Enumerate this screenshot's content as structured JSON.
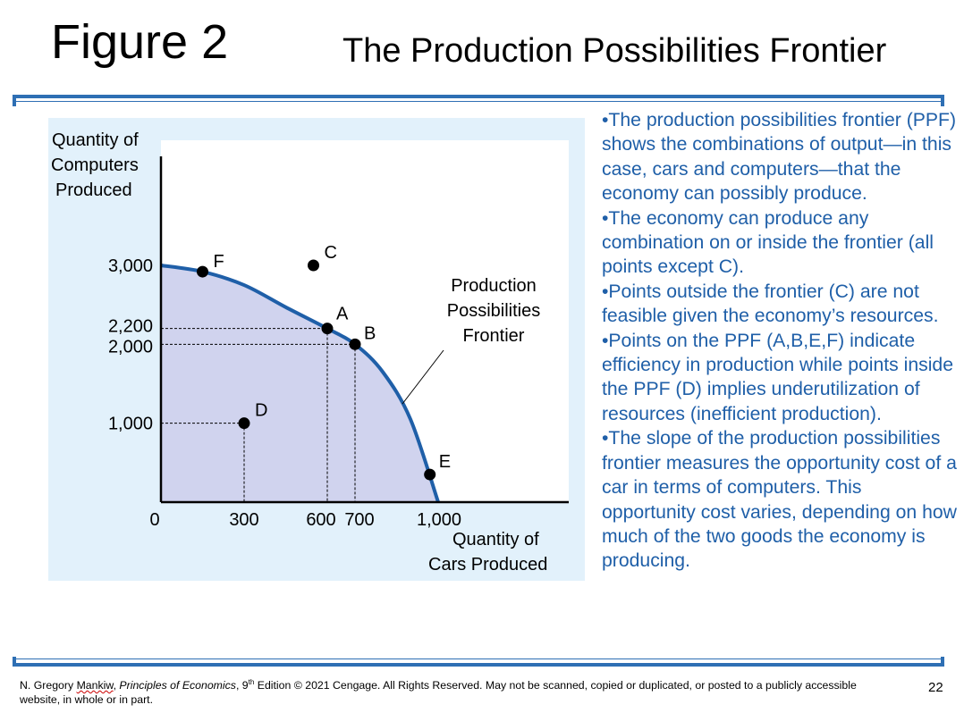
{
  "header": {
    "figure_label": "Figure 2",
    "title": "The Production Possibilities Frontier"
  },
  "colors": {
    "accent_blue": "#2e6fb4",
    "bullet_text": "#1f5fa8",
    "chart_background": "#e2f1fb",
    "feasible_region": "#d0d3ee",
    "frontier_line": "#1f5fa8"
  },
  "chart_data": {
    "type": "line",
    "xlabel": "Quantity of Cars Produced",
    "xlabel_lines": [
      "Quantity of",
      "Cars Produced"
    ],
    "ylabel": "Quantity of Computers Produced",
    "ylabel_lines": [
      "Quantity of",
      "Computers",
      "Produced"
    ],
    "xlim": [
      0,
      1000
    ],
    "ylim": [
      0,
      3000
    ],
    "origin_label": "0",
    "x_ticks": [
      {
        "value": 300,
        "label": "300"
      },
      {
        "value": 600,
        "label": "600"
      },
      {
        "value": 700,
        "label": "700"
      },
      {
        "value": 1000,
        "label": "1,000"
      }
    ],
    "y_ticks": [
      {
        "value": 1000,
        "label": "1,000"
      },
      {
        "value": 2000,
        "label": "2,000"
      },
      {
        "value": 2200,
        "label": "2,200"
      },
      {
        "value": 3000,
        "label": "3,000"
      }
    ],
    "frontier_label_lines": [
      "Production",
      "Possibilities",
      "Frontier"
    ],
    "frontier_curve": [
      [
        0,
        3000
      ],
      [
        150,
        2920
      ],
      [
        300,
        2750
      ],
      [
        450,
        2470
      ],
      [
        600,
        2200
      ],
      [
        700,
        2000
      ],
      [
        800,
        1650
      ],
      [
        900,
        1050
      ],
      [
        1000,
        0
      ]
    ],
    "points": [
      {
        "label": "F",
        "x": 150,
        "y": 2920
      },
      {
        "label": "C",
        "x": 550,
        "y": 3000
      },
      {
        "label": "A",
        "x": 600,
        "y": 2200
      },
      {
        "label": "B",
        "x": 700,
        "y": 2000
      },
      {
        "label": "D",
        "x": 300,
        "y": 1000
      },
      {
        "label": "E",
        "x": 970,
        "y": 350
      }
    ],
    "grid": false
  },
  "bullets": [
    "•The production possibilities frontier (PPF) shows the combinations of output—in this case, cars and computers—that the economy can possibly produce.",
    "•The economy can produce any combination on or inside the frontier (all points except C).",
    "•Points outside the frontier (C) are not feasible given the economy’s resources.",
    "•Points on the PPF (A,B,E,F) indicate efficiency in production while points inside the PPF (D) implies underutilization of resources (inefficient production).",
    "•The slope of the production possibilities frontier measures the opportunity cost of a car in terms of computers. This opportunity cost varies, depending on how much of the two goods the economy is producing."
  ],
  "footer": {
    "author_prefix": "N. Gregory ",
    "author_name": "Mankiw",
    "book_sep": ", ",
    "book_title": "Principles of Economics",
    "edition_num": ", 9",
    "edition_sup": "th",
    "rest": " Edition © 2021 Cengage. All Rights Reserved. May not be scanned, copied or duplicated, or posted to a publicly accessible website, in whole or in part.",
    "page_number": "22"
  }
}
